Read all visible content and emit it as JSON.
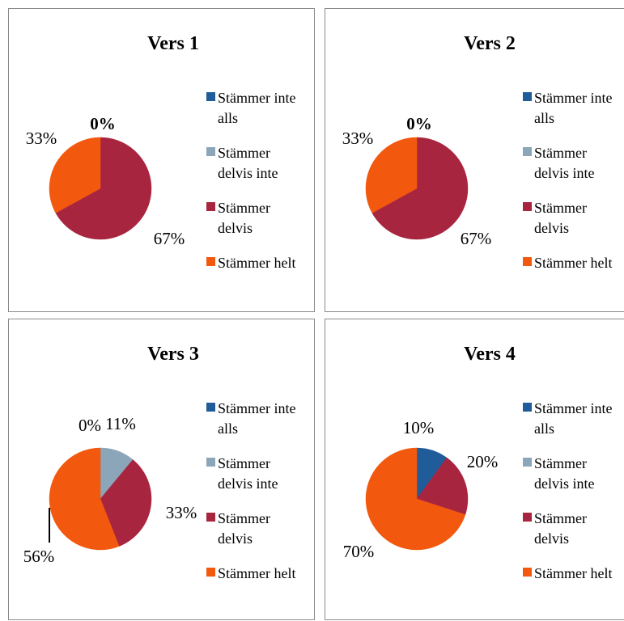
{
  "colors": {
    "stammer_inte_alls": "#1f5c99",
    "stammer_delvis_inte": "#8ba6b8",
    "stammer_delvis": "#a8253f",
    "stammer_helt": "#f2590e"
  },
  "legend": [
    {
      "label": "Stämmer inte alls",
      "color_key": "stammer_inte_alls"
    },
    {
      "label": "Stämmer delvis inte",
      "color_key": "stammer_delvis_inte"
    },
    {
      "label": "Stämmer delvis",
      "color_key": "stammer_delvis"
    },
    {
      "label": "Stämmer helt",
      "color_key": "stammer_helt"
    }
  ],
  "chart_data": [
    {
      "type": "pie",
      "title": "Vers 1",
      "categories": [
        "Stämmer inte alls",
        "Stämmer delvis inte",
        "Stämmer delvis",
        "Stämmer helt"
      ],
      "values": [
        0,
        0,
        67,
        33
      ],
      "data_labels": [
        "0%",
        "",
        "67%",
        "33%"
      ],
      "legend_position": "right"
    },
    {
      "type": "pie",
      "title": "Vers 2",
      "categories": [
        "Stämmer inte alls",
        "Stämmer delvis inte",
        "Stämmer delvis",
        "Stämmer helt"
      ],
      "values": [
        0,
        0,
        67,
        33
      ],
      "data_labels": [
        "0%",
        "",
        "67%",
        "33%"
      ],
      "legend_position": "right"
    },
    {
      "type": "pie",
      "title": "Vers 3",
      "categories": [
        "Stämmer inte alls",
        "Stämmer delvis inte",
        "Stämmer delvis",
        "Stämmer helt"
      ],
      "values": [
        0,
        11,
        33,
        56
      ],
      "data_labels": [
        "0%",
        "11%",
        "33%",
        "56%"
      ],
      "legend_position": "right"
    },
    {
      "type": "pie",
      "title": "Vers 4",
      "categories": [
        "Stämmer inte alls",
        "Stämmer delvis inte",
        "Stämmer delvis",
        "Stämmer helt"
      ],
      "values": [
        10,
        0,
        20,
        70
      ],
      "data_labels": [
        "10%",
        "",
        "20%",
        "70%"
      ],
      "legend_position": "right"
    }
  ]
}
